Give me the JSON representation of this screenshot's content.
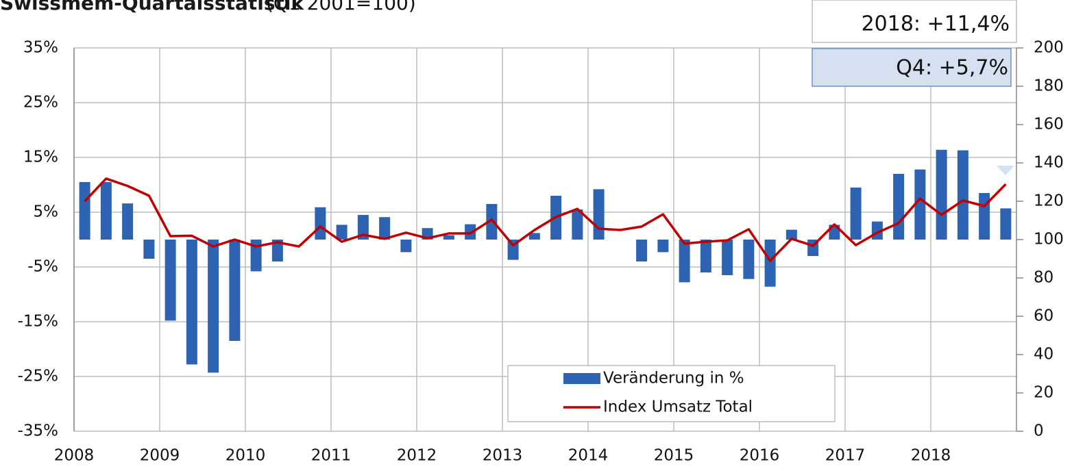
{
  "chart_data": {
    "type": "bar_line",
    "title": "Swissmem-Quartalsstatistik",
    "subtitle": "(Q1 2001=100)",
    "annotations": [
      "2018: +11,4%",
      "Q4: +5,7%"
    ],
    "categories": [
      "2008",
      null,
      null,
      null,
      "2009",
      null,
      null,
      null,
      "2010",
      null,
      null,
      null,
      "2011",
      null,
      null,
      null,
      "2012",
      null,
      null,
      null,
      "2013",
      null,
      null,
      null,
      "2014",
      null,
      null,
      null,
      "2015",
      null,
      null,
      null,
      "2016",
      null,
      null,
      null,
      "2017",
      null,
      null,
      null,
      "2018",
      null,
      null,
      null
    ],
    "series": [
      {
        "name": "Veränderung in %",
        "color": "#2e63b3",
        "type": "bar",
        "values": [
          10.5,
          10.5,
          6.6,
          -3.5,
          -14.8,
          -22.8,
          -24.3,
          -18.5,
          -5.8,
          -4.0,
          0,
          5.9,
          2.7,
          4.5,
          4.1,
          -2.3,
          2.1,
          0.8,
          2.8,
          6.5,
          -3.7,
          1.2,
          8.0,
          5.5,
          9.2,
          0,
          -4.0,
          -2.3,
          -7.8,
          -6.0,
          -6.5,
          -7.2,
          -8.6,
          1.8,
          -3.0,
          2.7,
          9.5,
          3.3,
          12.0,
          12.8,
          16.4,
          16.3,
          8.5,
          5.7
        ]
      },
      {
        "name": "Index Umsatz Total",
        "color": "#c00000",
        "type": "line",
        "axis": "y2",
        "values": [
          120,
          131.8,
          128,
          122.9,
          101.8,
          102,
          96.4,
          100,
          96.4,
          98.6,
          96.4,
          106.8,
          98.9,
          102.5,
          100.4,
          103.6,
          100.7,
          103.2,
          103.2,
          110.4,
          97,
          105,
          111.8,
          116,
          105.7,
          105,
          106.8,
          113.2,
          97.9,
          98.9,
          99.6,
          105.4,
          88.9,
          100.4,
          96.8,
          107.9,
          97.1,
          103.6,
          108.6,
          121.4,
          112.9,
          120.4,
          117.5,
          128.9
        ]
      }
    ],
    "ylim": [
      -35,
      35
    ],
    "yticks": [
      {
        "value": -35,
        "label": "-35%"
      },
      {
        "value": -25,
        "label": "-25%"
      },
      {
        "value": -15,
        "label": "-15%"
      },
      {
        "value": -5,
        "label": "-5%"
      },
      {
        "value": 5,
        "label": "5%"
      },
      {
        "value": 15,
        "label": "15%"
      },
      {
        "value": 25,
        "label": "25%"
      },
      {
        "value": 35,
        "label": "35%"
      }
    ],
    "y2lim": [
      0,
      200
    ],
    "y2ticks": [
      0,
      20,
      40,
      60,
      80,
      100,
      120,
      140,
      160,
      180,
      200
    ],
    "grid": true,
    "legend": "bottom"
  }
}
